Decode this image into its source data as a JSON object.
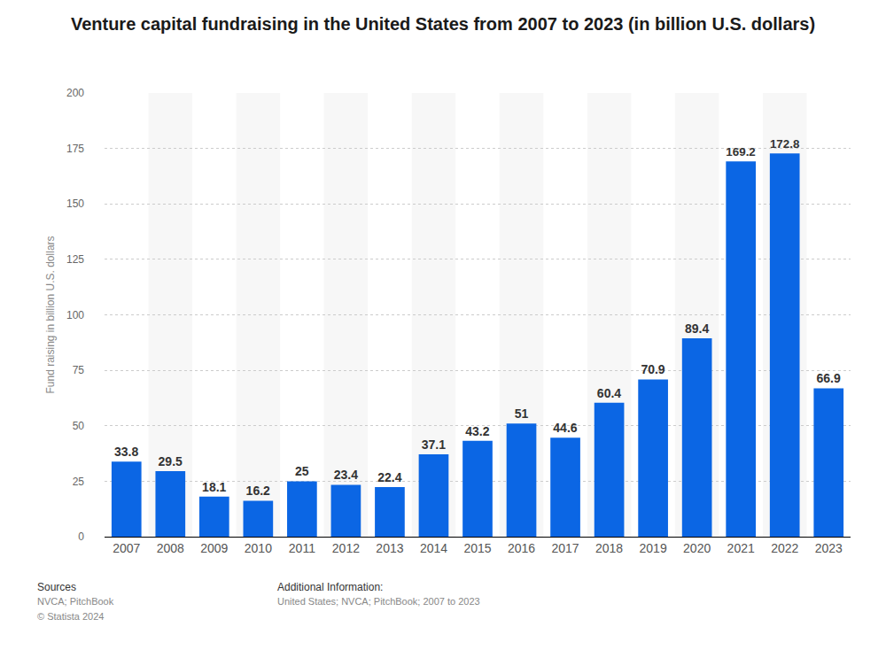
{
  "chart_data": {
    "type": "bar",
    "title": "Venture capital fundraising in the United States from 2007 to 2023 (in billion U.S. dollars)",
    "y_label": "Fund raising in billion U.S. dollars",
    "categories": [
      "2007",
      "2008",
      "2009",
      "2010",
      "2011",
      "2012",
      "2013",
      "2014",
      "2015",
      "2016",
      "2017",
      "2018",
      "2019",
      "2020",
      "2021",
      "2022",
      "2023"
    ],
    "values": [
      33.8,
      29.5,
      18.1,
      16.2,
      25,
      23.4,
      22.4,
      37.1,
      43.2,
      51,
      44.6,
      60.4,
      70.9,
      89.4,
      169.2,
      172.8,
      66.9
    ],
    "color": "#0b66e4",
    "ylim": [
      0,
      200
    ],
    "yticks": [
      0,
      25,
      50,
      75,
      100,
      125,
      150,
      175,
      200
    ],
    "grid": true,
    "data_labels": true,
    "annotations": [
      "Sources",
      "NVCA; PitchBook",
      "© Statista 2024",
      "Additional Information:",
      "United States; NVCA; PitchBook; 2007 to 2023"
    ]
  }
}
